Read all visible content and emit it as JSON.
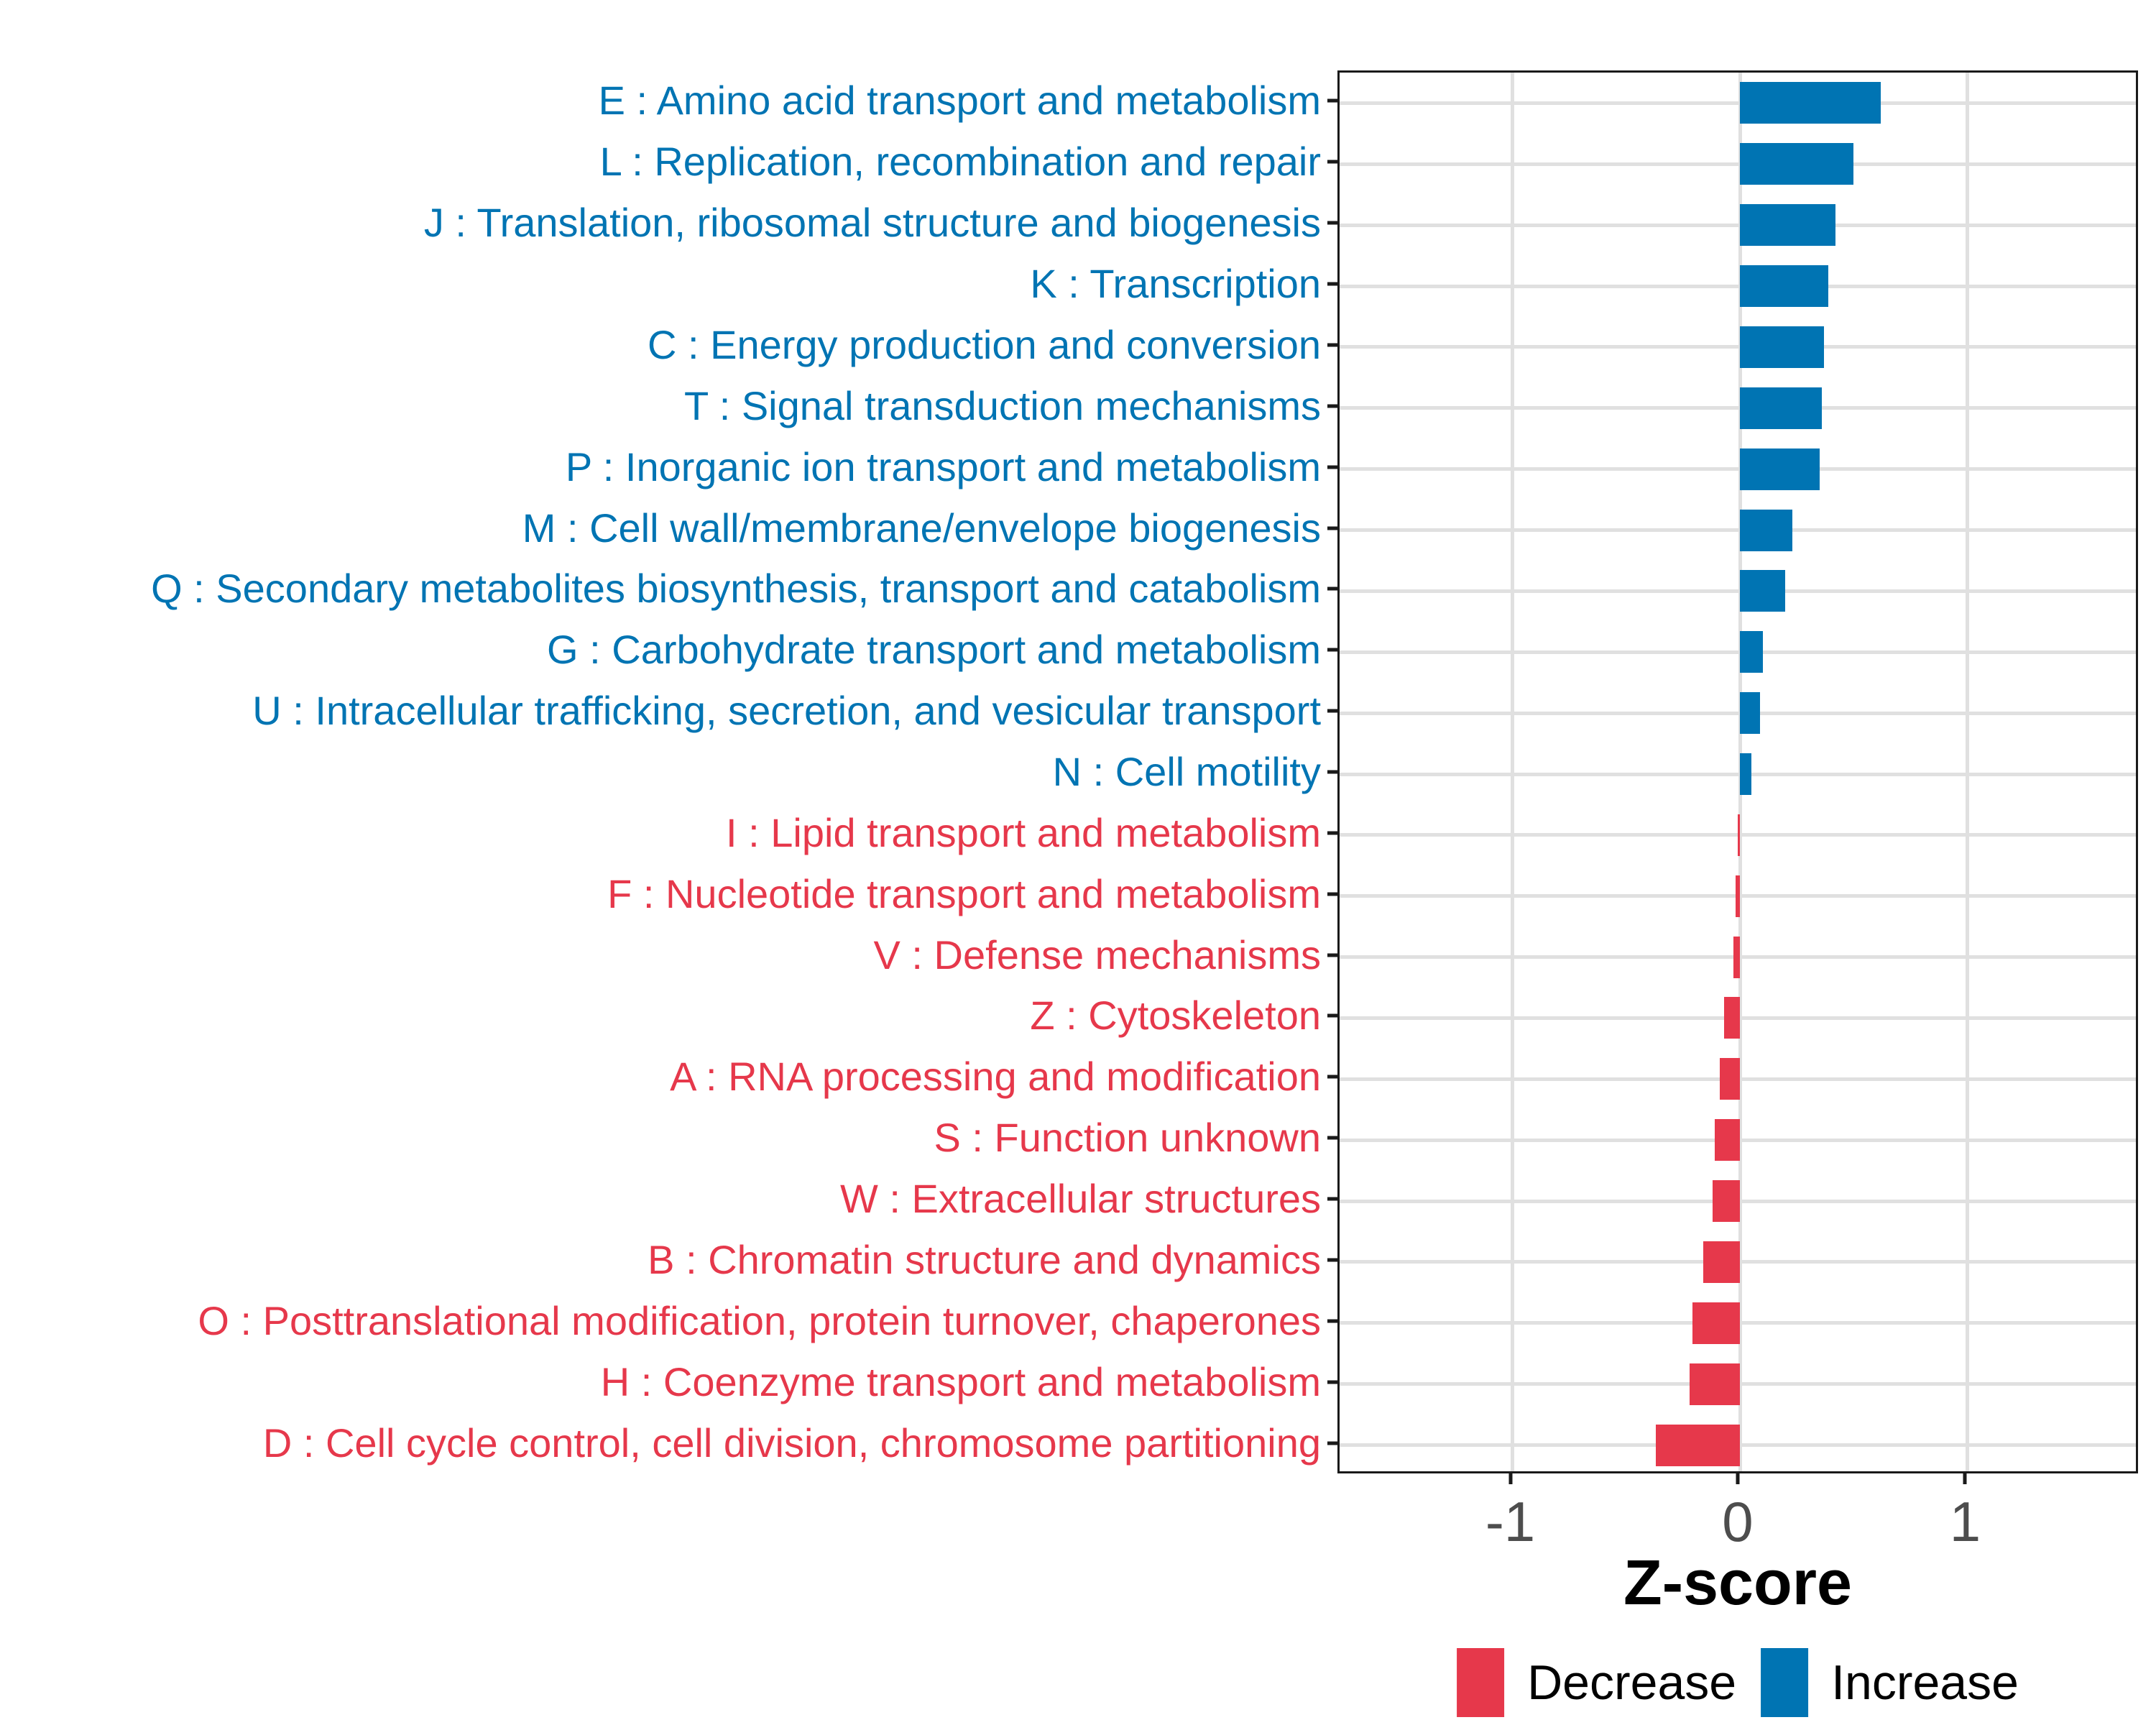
{
  "chart_data": {
    "type": "bar",
    "orientation": "horizontal",
    "title": "",
    "xlabel": "Z-score",
    "ylabel": "",
    "xlim": [
      -1.76,
      1.76
    ],
    "x_ticks": [
      {
        "label": "-1",
        "value": -1
      },
      {
        "label": "0",
        "value": 0
      },
      {
        "label": "1",
        "value": 1
      }
    ],
    "grid": "major gridlines only, light gray, panel framed in black (ggplot theme_bw style)",
    "categories": [
      "E : Amino acid transport and metabolism",
      "L : Replication, recombination and repair",
      "J : Translation, ribosomal structure and biogenesis",
      "K : Transcription",
      "C : Energy production and conversion",
      "T : Signal transduction mechanisms",
      "P : Inorganic ion transport and metabolism",
      "M : Cell wall/membrane/envelope biogenesis",
      "Q : Secondary metabolites biosynthesis, transport and catabolism",
      "G : Carbohydrate transport and metabolism",
      "U : Intracellular trafficking, secretion, and vesicular transport",
      "N : Cell motility",
      "I : Lipid transport and metabolism",
      "F : Nucleotide transport and metabolism",
      "V : Defense mechanisms",
      "Z : Cytoskeleton",
      "A : RNA processing and modification",
      "S : Function unknown",
      "W : Extracellular structures",
      "B : Chromatin structure and dynamics",
      "O : Posttranslational modification, protein turnover, chaperones",
      "H : Coenzyme transport and metabolism",
      "D : Cell cycle control, cell division, chromosome partitioning"
    ],
    "category_codes": [
      "E",
      "L",
      "J",
      "K",
      "C",
      "T",
      "P",
      "M",
      "Q",
      "G",
      "U",
      "N",
      "I",
      "F",
      "V",
      "Z",
      "A",
      "S",
      "W",
      "B",
      "O",
      "H",
      "D"
    ],
    "values": [
      0.62,
      0.5,
      0.42,
      0.39,
      0.37,
      0.36,
      0.35,
      0.23,
      0.2,
      0.1,
      0.09,
      0.05,
      -0.01,
      -0.02,
      -0.03,
      -0.07,
      -0.09,
      -0.11,
      -0.12,
      -0.16,
      -0.21,
      -0.22,
      -0.37
    ],
    "groups": [
      "Increase",
      "Increase",
      "Increase",
      "Increase",
      "Increase",
      "Increase",
      "Increase",
      "Increase",
      "Increase",
      "Increase",
      "Increase",
      "Increase",
      "Decrease",
      "Decrease",
      "Decrease",
      "Decrease",
      "Decrease",
      "Decrease",
      "Decrease",
      "Decrease",
      "Decrease",
      "Decrease",
      "Decrease"
    ],
    "colors": {
      "Increase": "#0074b3",
      "Decrease": "#e6384b"
    },
    "legend": {
      "position": "bottom",
      "items": [
        {
          "label": "Decrease",
          "color": "#e6384b"
        },
        {
          "label": "Increase",
          "color": "#0074b3"
        }
      ]
    }
  },
  "style_colors": {
    "gridline": "#e0e0e0",
    "panel_border": "#1a1a1a",
    "tick_label": "#4d4d4d",
    "axis_title": "#000000"
  }
}
